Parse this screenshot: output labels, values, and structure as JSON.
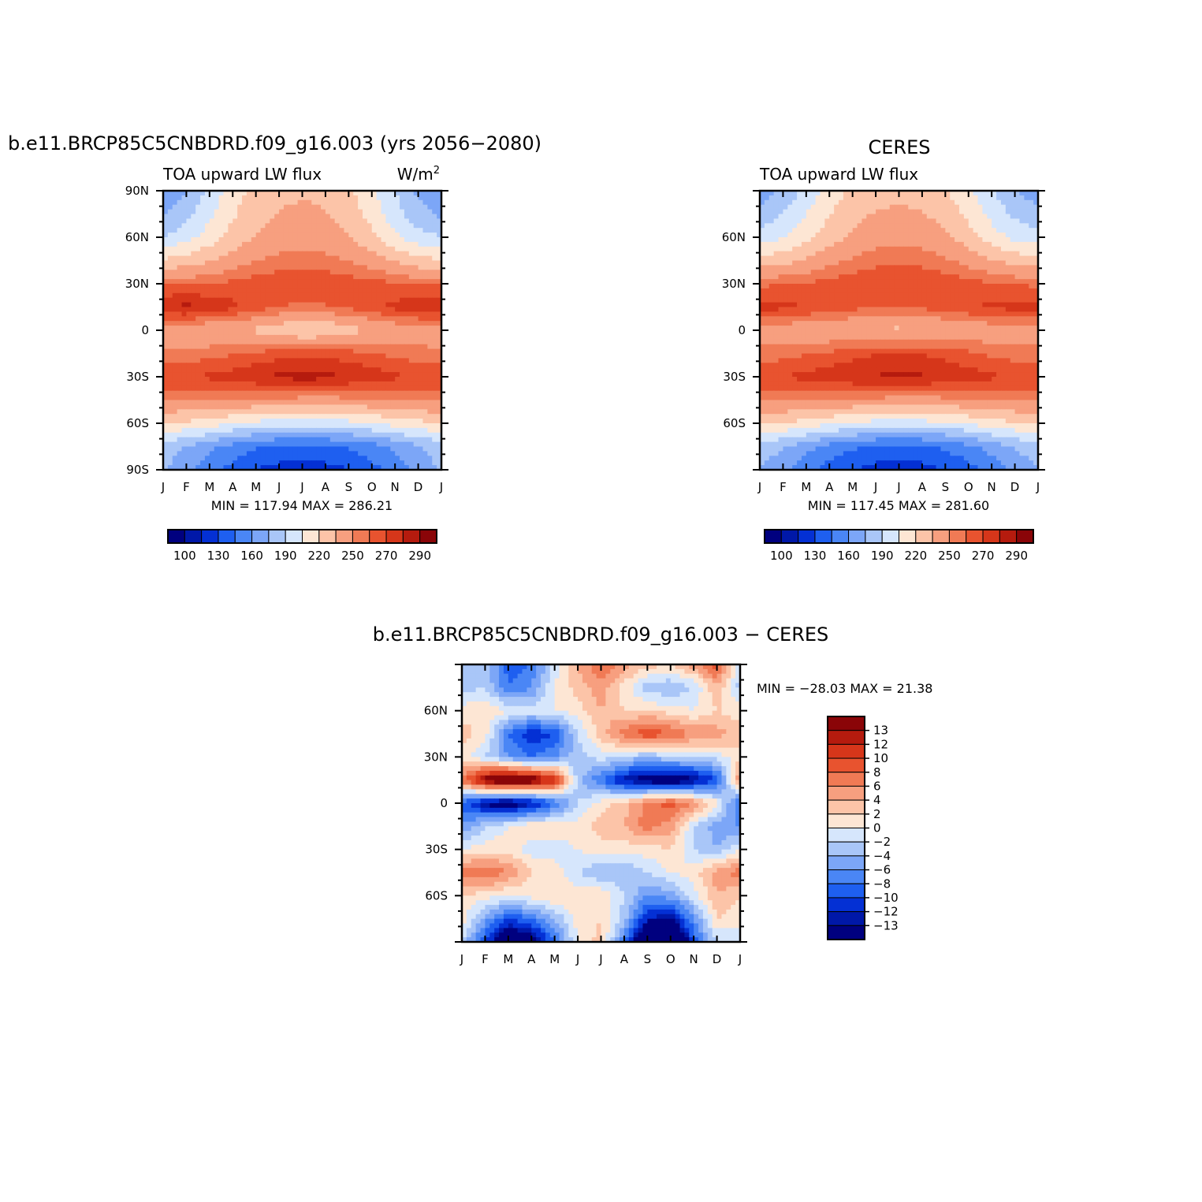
{
  "colors": {
    "seq": [
      "#00007f",
      "#0018a8",
      "#0430d4",
      "#1e5ff0",
      "#4a86f5",
      "#7ca6f7",
      "#a9c6f8",
      "#d6e6fc",
      "#fde6d4",
      "#fcc4a8",
      "#f79f7f",
      "#f07a55",
      "#e8532f",
      "#d6361a",
      "#b51b0e",
      "#8a0508"
    ],
    "diff": [
      "#00007f",
      "#0018a8",
      "#0430d4",
      "#1e5ff0",
      "#4a86f5",
      "#7ca6f7",
      "#a9c6f8",
      "#d6e6fc",
      "#fde6d4",
      "#fcc4a8",
      "#f79f7f",
      "#f07a55",
      "#e8532f",
      "#d6361a",
      "#b51b0e",
      "#8a0508"
    ]
  },
  "chart_data": [
    {
      "id": "model",
      "type": "heatmap",
      "title": "b.e11.BRCP85C5CNBDRD.f09_g16.003 (yrs 2056−2080)",
      "left_label": "TOA upward LW flux",
      "right_label": "W/m",
      "right_label_sup": "2",
      "x_ticks": [
        "J",
        "F",
        "M",
        "A",
        "M",
        "J",
        "J",
        "A",
        "S",
        "O",
        "N",
        "D",
        "J"
      ],
      "y_ticks": [
        {
          "lat": 90,
          "label": "90N"
        },
        {
          "lat": 60,
          "label": "60N"
        },
        {
          "lat": 30,
          "label": "30N"
        },
        {
          "lat": 0,
          "label": "0"
        },
        {
          "lat": -30,
          "label": "30S"
        },
        {
          "lat": -60,
          "label": "60S"
        },
        {
          "lat": -90,
          "label": "90S"
        }
      ],
      "ylim": [
        -90,
        90
      ],
      "min_max": "MIN = 117.94  MAX = 286.21",
      "levels": [
        100,
        115,
        130,
        145,
        160,
        175,
        190,
        205,
        220,
        235,
        250,
        260,
        270,
        280,
        290
      ],
      "colorbar_labels": [
        "100",
        "130",
        "160",
        "190",
        "220",
        "250",
        "270",
        "290"
      ],
      "colorbar_label_idx": [
        0,
        2,
        4,
        6,
        8,
        10,
        12,
        14
      ],
      "months": [
        "Jan",
        "Feb",
        "Mar",
        "Apr",
        "May",
        "Jun",
        "Jul",
        "Aug",
        "Sep",
        "Oct",
        "Nov",
        "Dec",
        "Jan"
      ],
      "lats": [
        90,
        75,
        60,
        45,
        30,
        15,
        0,
        -15,
        -30,
        -45,
        -60,
        -75,
        -90
      ],
      "values": [
        [
          160,
          175,
          195,
          213,
          226,
          231,
          233,
          232,
          224,
          208,
          190,
          172,
          160
        ],
        [
          172,
          186,
          202,
          218,
          230,
          236,
          238,
          236,
          228,
          214,
          196,
          181,
          172
        ],
        [
          190,
          199,
          212,
          226,
          236,
          242,
          244,
          242,
          236,
          224,
          208,
          196,
          190
        ],
        [
          222,
          227,
          234,
          242,
          249,
          254,
          256,
          254,
          249,
          242,
          233,
          225,
          222
        ],
        [
          258,
          258,
          260,
          263,
          266,
          268,
          269,
          268,
          266,
          264,
          261,
          259,
          258
        ],
        [
          281,
          283,
          279,
          273,
          265,
          260,
          258,
          259,
          262,
          267,
          273,
          278,
          281
        ],
        [
          243,
          240,
          236,
          235,
          232,
          226,
          220,
          222,
          229,
          235,
          240,
          242,
          243
        ],
        [
          252,
          254,
          256,
          259,
          262,
          266,
          268,
          267,
          264,
          261,
          257,
          254,
          252
        ],
        [
          268,
          269,
          272,
          275,
          279,
          282,
          285,
          283,
          280,
          276,
          272,
          270,
          268
        ],
        [
          252,
          252,
          252,
          251,
          249,
          247,
          246,
          246,
          247,
          249,
          251,
          252,
          252
        ],
        [
          220,
          217,
          212,
          206,
          201,
          198,
          197,
          198,
          200,
          205,
          211,
          216,
          220
        ],
        [
          182,
          174,
          164,
          154,
          147,
          143,
          142,
          143,
          147,
          154,
          163,
          173,
          182
        ],
        [
          178,
          165,
          150,
          140,
          130,
          124,
          122,
          124,
          130,
          140,
          152,
          166,
          178
        ]
      ]
    },
    {
      "id": "obs",
      "type": "heatmap",
      "title": "CERES",
      "left_label": "TOA upward LW flux",
      "x_ticks": [
        "J",
        "F",
        "M",
        "A",
        "M",
        "J",
        "J",
        "A",
        "S",
        "O",
        "N",
        "D",
        "J"
      ],
      "y_ticks": [
        {
          "lat": 60,
          "label": "60N"
        },
        {
          "lat": 30,
          "label": "30N"
        },
        {
          "lat": 0,
          "label": "0"
        },
        {
          "lat": -30,
          "label": "30S"
        },
        {
          "lat": -60,
          "label": "60S"
        }
      ],
      "ylim": [
        -90,
        90
      ],
      "min_max": "MIN = 117.45  MAX = 281.60",
      "levels": [
        100,
        115,
        130,
        145,
        160,
        175,
        190,
        205,
        220,
        235,
        250,
        260,
        270,
        280,
        290
      ],
      "colorbar_labels": [
        "100",
        "130",
        "160",
        "190",
        "220",
        "250",
        "270",
        "290"
      ],
      "colorbar_label_idx": [
        0,
        2,
        4,
        6,
        8,
        10,
        12,
        14
      ],
      "months": [
        "Jan",
        "Feb",
        "Mar",
        "Apr",
        "May",
        "Jun",
        "Jul",
        "Aug",
        "Sep",
        "Oct",
        "Nov",
        "Dec",
        "Jan"
      ],
      "lats": [
        90,
        75,
        60,
        45,
        30,
        15,
        0,
        -15,
        -30,
        -45,
        -60,
        -75,
        -90
      ],
      "values": [
        [
          165,
          178,
          195,
          212,
          224,
          229,
          231,
          229,
          222,
          208,
          191,
          175,
          165
        ],
        [
          180,
          190,
          205,
          219,
          230,
          236,
          238,
          236,
          229,
          216,
          200,
          187,
          180
        ],
        [
          196,
          204,
          216,
          228,
          238,
          244,
          246,
          244,
          238,
          227,
          212,
          201,
          196
        ],
        [
          226,
          230,
          237,
          245,
          252,
          256,
          258,
          256,
          252,
          245,
          236,
          229,
          226
        ],
        [
          258,
          259,
          261,
          264,
          267,
          269,
          270,
          269,
          267,
          264,
          261,
          259,
          258
        ],
        [
          275,
          273,
          270,
          266,
          263,
          261,
          261,
          262,
          265,
          269,
          272,
          274,
          275
        ],
        [
          242,
          241,
          240,
          238,
          236,
          233,
          232,
          233,
          236,
          239,
          241,
          242,
          242
        ],
        [
          254,
          256,
          259,
          262,
          266,
          270,
          271,
          270,
          266,
          262,
          258,
          255,
          254
        ],
        [
          268,
          270,
          273,
          276,
          279,
          281,
          282,
          281,
          279,
          275,
          272,
          269,
          268
        ],
        [
          252,
          252,
          252,
          251,
          249,
          247,
          246,
          246,
          247,
          249,
          251,
          252,
          252
        ],
        [
          222,
          219,
          214,
          208,
          203,
          200,
          199,
          200,
          202,
          207,
          213,
          218,
          222
        ],
        [
          185,
          176,
          165,
          155,
          148,
          143,
          141,
          143,
          148,
          156,
          166,
          176,
          185
        ],
        [
          175,
          163,
          150,
          139,
          130,
          124,
          122,
          124,
          130,
          139,
          150,
          163,
          175
        ]
      ]
    },
    {
      "id": "diff",
      "type": "heatmap",
      "title": "b.e11.BRCP85C5CNBDRD.f09_g16.003 − CERES",
      "x_ticks": [
        "J",
        "F",
        "M",
        "A",
        "M",
        "J",
        "J",
        "A",
        "S",
        "O",
        "N",
        "D",
        "J"
      ],
      "y_ticks": [
        {
          "lat": 60,
          "label": "60N"
        },
        {
          "lat": 30,
          "label": "30N"
        },
        {
          "lat": 0,
          "label": "0"
        },
        {
          "lat": -30,
          "label": "30S"
        },
        {
          "lat": -60,
          "label": "60S"
        }
      ],
      "ylim": [
        -90,
        90
      ],
      "min_max": "MIN = −28.03  MAX =  21.38",
      "levels": [
        -13,
        -12,
        -10,
        -8,
        -6,
        -4,
        -2,
        0,
        2,
        4,
        6,
        8,
        10,
        12,
        13
      ],
      "colorbar_labels": [
        "13",
        "12",
        "10",
        "8",
        "6",
        "4",
        "2",
        "0",
        "−2",
        "−4",
        "−6",
        "−8",
        "−10",
        "−12",
        "−13"
      ],
      "months": [
        "Jan",
        "Feb",
        "Mar",
        "Apr",
        "May",
        "Jun",
        "Jul",
        "Aug",
        "Sep",
        "Oct",
        "Nov",
        "Dec",
        "Jan"
      ],
      "lats": [
        90,
        75,
        60,
        45,
        30,
        15,
        0,
        -15,
        -30,
        -45,
        -60,
        -75,
        -90
      ],
      "values": [
        [
          -2,
          -3,
          -9,
          -8,
          -1,
          4,
          8,
          5,
          3,
          2,
          5,
          9,
          -2
        ],
        [
          -3,
          -2,
          -8,
          -6,
          0,
          3,
          5,
          1,
          -3,
          -4,
          -2,
          4,
          -3
        ],
        [
          1,
          2,
          0,
          -1,
          0,
          1,
          4,
          2,
          2,
          1,
          0,
          2,
          1
        ],
        [
          3,
          1,
          -8,
          -12,
          -10,
          -2,
          3,
          7,
          10,
          8,
          6,
          5,
          3
        ],
        [
          1,
          -2,
          -6,
          -8,
          -6,
          -3,
          -1,
          -2,
          -4,
          -2,
          -2,
          -1,
          1
        ],
        [
          7,
          15,
          18,
          16,
          12,
          -3,
          -8,
          -13,
          -15,
          -16,
          -14,
          -10,
          7
        ],
        [
          -9,
          -14,
          -16,
          -13,
          -8,
          -2,
          1,
          3,
          7,
          9,
          6,
          1,
          -9
        ],
        [
          -6,
          -2,
          0,
          2,
          1,
          1,
          3,
          4,
          7,
          5,
          -2,
          -5,
          -6
        ],
        [
          0,
          1,
          1,
          -1,
          -1,
          0,
          1,
          1,
          1,
          2,
          -2,
          -4,
          0
        ],
        [
          7,
          8,
          6,
          2,
          1,
          -2,
          -4,
          -4,
          -2,
          0,
          1,
          5,
          7
        ],
        [
          2,
          1,
          0,
          1,
          2,
          1,
          2,
          -2,
          -6,
          -5,
          -1,
          4,
          2
        ],
        [
          1,
          -5,
          -10,
          -8,
          -4,
          1,
          2,
          -3,
          -12,
          -14,
          -6,
          2,
          1
        ],
        [
          -2,
          -10,
          -18,
          -16,
          -8,
          0,
          3,
          -8,
          -20,
          -22,
          -10,
          -2,
          -2
        ]
      ]
    }
  ]
}
